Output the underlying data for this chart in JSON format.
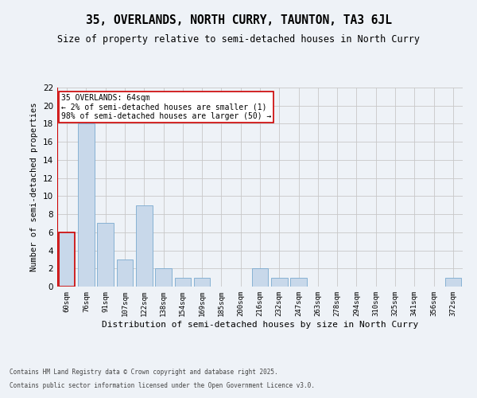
{
  "title1": "35, OVERLANDS, NORTH CURRY, TAUNTON, TA3 6JL",
  "title2": "Size of property relative to semi-detached houses in North Curry",
  "xlabel": "Distribution of semi-detached houses by size in North Curry",
  "ylabel": "Number of semi-detached properties",
  "categories": [
    "60sqm",
    "76sqm",
    "91sqm",
    "107sqm",
    "122sqm",
    "138sqm",
    "154sqm",
    "169sqm",
    "185sqm",
    "200sqm",
    "216sqm",
    "232sqm",
    "247sqm",
    "263sqm",
    "278sqm",
    "294sqm",
    "310sqm",
    "325sqm",
    "341sqm",
    "356sqm",
    "372sqm"
  ],
  "values": [
    6,
    18,
    7,
    3,
    9,
    2,
    1,
    1,
    0,
    0,
    2,
    1,
    1,
    0,
    0,
    0,
    0,
    0,
    0,
    0,
    1
  ],
  "bar_color": "#c8d8ea",
  "bar_edge_color": "#7aaacf",
  "highlight_bar_index": 0,
  "highlight_edge_color": "#cc0000",
  "annotation_text": "35 OVERLANDS: 64sqm\n← 2% of semi-detached houses are smaller (1)\n98% of semi-detached houses are larger (50) →",
  "annotation_box_color": "#ffffff",
  "annotation_box_edge_color": "#cc0000",
  "ylim": [
    0,
    22
  ],
  "yticks": [
    0,
    2,
    4,
    6,
    8,
    10,
    12,
    14,
    16,
    18,
    20,
    22
  ],
  "footer1": "Contains HM Land Registry data © Crown copyright and database right 2025.",
  "footer2": "Contains public sector information licensed under the Open Government Licence v3.0.",
  "background_color": "#eef2f7",
  "grid_color": "#c8c8c8"
}
